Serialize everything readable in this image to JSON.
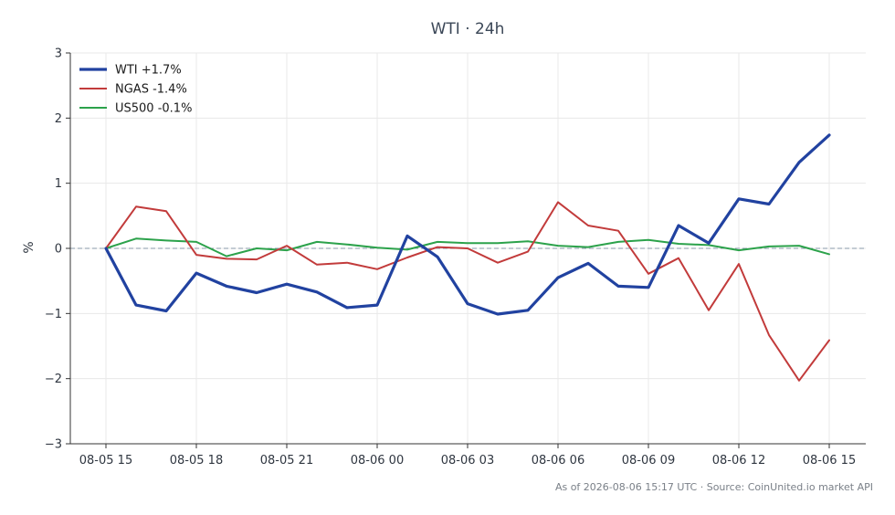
{
  "chart_data": {
    "type": "line",
    "title": "WTI · 24h",
    "xlabel": "",
    "ylabel": "%",
    "footer": "As of 2026-08-06 15:17 UTC · Source: CoinUnited.io market API",
    "ylim": [
      -3,
      3
    ],
    "yticks": [
      "−3",
      "−2",
      "−1",
      "0",
      "1",
      "2",
      "3"
    ],
    "ytick_values": [
      -3,
      -2,
      -1,
      0,
      1,
      2,
      3
    ],
    "xticks": [
      "08-05 15",
      "08-05 18",
      "08-05 21",
      "08-06 00",
      "08-06 03",
      "08-06 06",
      "08-06 09",
      "08-06 12",
      "08-06 15"
    ],
    "x": [
      "08-05 15",
      "08-05 16",
      "08-05 17",
      "08-05 18",
      "08-05 19",
      "08-05 20",
      "08-05 21",
      "08-05 22",
      "08-05 23",
      "08-06 00",
      "08-06 01",
      "08-06 02",
      "08-06 03",
      "08-06 04",
      "08-06 05",
      "08-06 06",
      "08-06 07",
      "08-06 08",
      "08-06 09",
      "08-06 10",
      "08-06 11",
      "08-06 12",
      "08-06 13",
      "08-06 14",
      "08-06 15"
    ],
    "grid": true,
    "zero_line": "dashed",
    "legend_position": "top-left",
    "series": [
      {
        "name": "WTI +1.7%",
        "color": "#2142a0",
        "values": [
          0.0,
          -0.87,
          -0.96,
          -0.38,
          -0.58,
          -0.68,
          -0.55,
          -0.67,
          -0.91,
          -0.87,
          0.19,
          -0.13,
          -0.85,
          -1.01,
          -0.95,
          -0.45,
          -0.23,
          -0.58,
          -0.6,
          0.35,
          0.08,
          0.76,
          0.68,
          1.32,
          1.74
        ]
      },
      {
        "name": "NGAS -1.4%",
        "color": "#c23b3b",
        "values": [
          0.0,
          0.64,
          0.57,
          -0.1,
          -0.16,
          -0.17,
          0.04,
          -0.25,
          -0.22,
          -0.32,
          -0.14,
          0.02,
          0.0,
          -0.22,
          -0.05,
          0.71,
          0.35,
          0.27,
          -0.39,
          -0.15,
          -0.95,
          -0.24,
          -1.33,
          -2.03,
          -1.41
        ]
      },
      {
        "name": "US500 -0.1%",
        "color": "#2ca24b",
        "values": [
          0.0,
          0.15,
          0.12,
          0.1,
          -0.12,
          0.0,
          -0.03,
          0.1,
          0.06,
          0.01,
          -0.02,
          0.1,
          0.08,
          0.08,
          0.11,
          0.04,
          0.02,
          0.1,
          0.13,
          0.07,
          0.05,
          -0.03,
          0.03,
          0.04,
          -0.09
        ]
      }
    ]
  }
}
